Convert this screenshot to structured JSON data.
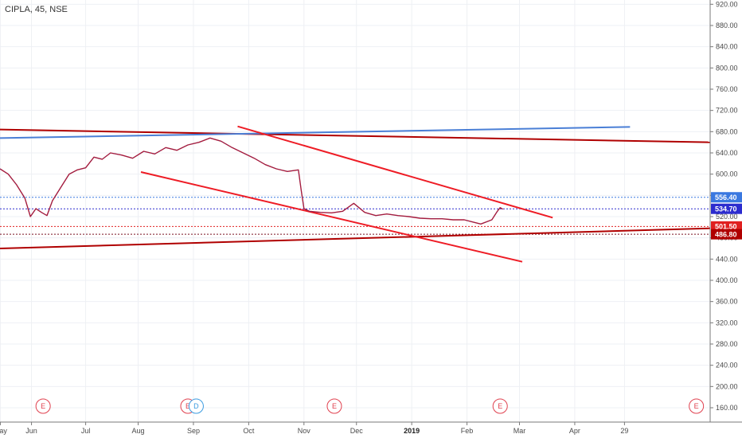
{
  "symbol_label": "CIPLA, 45, NSE",
  "chart_data": {
    "type": "line",
    "title": "CIPLA, 45, NSE",
    "xlabel": "",
    "ylabel": "",
    "ylim": [
      133,
      928
    ],
    "y_ticks": [
      920,
      880,
      840,
      800,
      760,
      720,
      680,
      640,
      600,
      560,
      520,
      480,
      440,
      400,
      360,
      320,
      280,
      240,
      200,
      160
    ],
    "x_ticks": [
      {
        "label": "May",
        "x": 0.006,
        "bold": false
      },
      {
        "label": "Jun",
        "x": 0.57,
        "bold": false
      },
      {
        "label": "Jul",
        "x": 1.55,
        "bold": false
      },
      {
        "label": "Aug",
        "x": 2.5,
        "bold": false
      },
      {
        "label": "Sep",
        "x": 3.5,
        "bold": false
      },
      {
        "label": "Oct",
        "x": 4.5,
        "bold": false
      },
      {
        "label": "Nov",
        "x": 5.5,
        "bold": false
      },
      {
        "label": "Dec",
        "x": 6.45,
        "bold": false
      },
      {
        "label": "2019",
        "x": 7.45,
        "bold": true
      },
      {
        "label": "Feb",
        "x": 8.45,
        "bold": false
      },
      {
        "label": "Mar",
        "x": 9.4,
        "bold": false
      },
      {
        "label": "Apr",
        "x": 10.4,
        "bold": false
      },
      {
        "label": "29",
        "x": 11.3,
        "bold": false
      }
    ],
    "xlim": [
      0,
      12.85
    ],
    "price_series": {
      "name": "",
      "x": [
        0,
        0.15,
        0.3,
        0.45,
        0.55,
        0.65,
        0.75,
        0.85,
        0.95,
        1.1,
        1.25,
        1.4,
        1.55,
        1.7,
        1.85,
        2.0,
        2.2,
        2.4,
        2.6,
        2.8,
        3.0,
        3.2,
        3.4,
        3.6,
        3.8,
        4.0,
        4.2,
        4.4,
        4.6,
        4.8,
        5.0,
        5.2,
        5.4,
        5.45,
        5.5,
        5.6,
        5.8,
        6.0,
        6.2,
        6.4,
        6.6,
        6.8,
        7.0,
        7.2,
        7.4,
        7.6,
        7.8,
        8.0,
        8.2,
        8.4,
        8.55,
        8.7,
        8.9,
        9.0,
        9.05,
        9.1
      ],
      "y": [
        610,
        600,
        580,
        555,
        520,
        535,
        528,
        522,
        550,
        575,
        600,
        608,
        612,
        632,
        628,
        640,
        636,
        630,
        643,
        638,
        650,
        645,
        655,
        660,
        668,
        662,
        650,
        640,
        630,
        618,
        610,
        605,
        608,
        570,
        535,
        530,
        528,
        527,
        530,
        545,
        528,
        522,
        525,
        522,
        520,
        517,
        516,
        516,
        514,
        514,
        510,
        506,
        514,
        530,
        537,
        534
      ]
    },
    "trend_lines": [
      {
        "name": "",
        "color": "#b00000",
        "x": [
          0,
          12.85
        ],
        "y": [
          684,
          660
        ]
      },
      {
        "name": "",
        "color": "#4a7fd6",
        "x": [
          0,
          11.4
        ],
        "y": [
          668,
          689
        ]
      },
      {
        "name": "",
        "color": "#b00000",
        "x": [
          0,
          12.85
        ],
        "y": [
          460,
          498
        ]
      },
      {
        "name": "",
        "color": "#ee1c25",
        "x": [
          4.3,
          10.0
        ],
        "y": [
          690,
          518
        ]
      },
      {
        "name": "",
        "color": "#ee1c25",
        "x": [
          2.55,
          9.45
        ],
        "y": [
          604,
          435
        ]
      }
    ],
    "horizontal_lines": [
      {
        "name": "",
        "color": "#3a78e0",
        "y": 556.4,
        "style": "dotted"
      },
      {
        "name": "",
        "color": "#2c2ccf",
        "y": 534.7,
        "style": "dotted"
      },
      {
        "name": "",
        "color": "#e02020",
        "y": 501.5,
        "style": "dotted"
      },
      {
        "name": "",
        "color": "#7a1020",
        "y": 486.8,
        "style": "dotted"
      }
    ],
    "price_badges": [
      {
        "label": "556.40",
        "y": 556.4,
        "color": "#3a78e0"
      },
      {
        "label": "534.70",
        "y": 534.7,
        "color": "#2c2ccf"
      },
      {
        "label": "501.50",
        "y": 501.5,
        "color": "#e02020"
      },
      {
        "label": "486.80",
        "y": 486.8,
        "color": "#b00000"
      }
    ],
    "events": [
      {
        "label": "E",
        "x": 0.78,
        "color": "#e0414f"
      },
      {
        "label": "E",
        "x": 3.4,
        "color": "#e0414f"
      },
      {
        "label": "D",
        "x": 3.55,
        "color": "#3a9be0"
      },
      {
        "label": "E",
        "x": 6.05,
        "color": "#e0414f"
      },
      {
        "label": "E",
        "x": 9.05,
        "color": "#e0414f"
      },
      {
        "label": "E",
        "x": 12.6,
        "color": "#e0414f"
      }
    ]
  }
}
